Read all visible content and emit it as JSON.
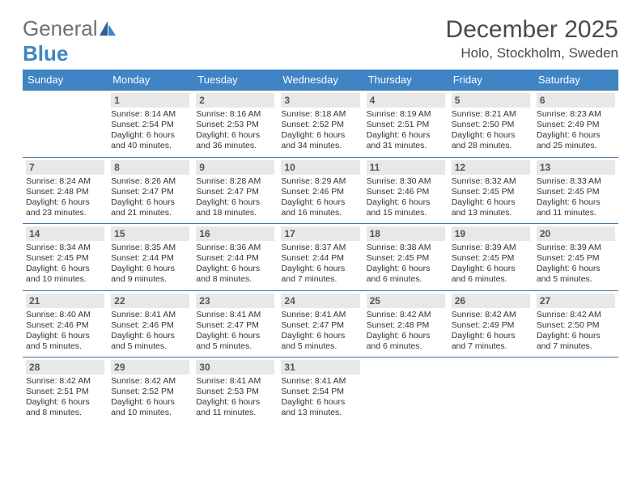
{
  "logo": {
    "part1": "General",
    "part2": "Blue"
  },
  "title": "December 2025",
  "location": "Holo, Stockholm, Sweden",
  "colors": {
    "header_bg": "#3f84c5",
    "header_text": "#ffffff",
    "daynum_bg": "#e8e8e8",
    "border": "#3f6ea0",
    "body_text": "#333333",
    "logo_gray": "#707070",
    "logo_blue": "#3f84c5"
  },
  "day_headers": [
    "Sunday",
    "Monday",
    "Tuesday",
    "Wednesday",
    "Thursday",
    "Friday",
    "Saturday"
  ],
  "weeks": [
    [
      {
        "num": "",
        "sunrise": "",
        "sunset": "",
        "daylight": ""
      },
      {
        "num": "1",
        "sunrise": "Sunrise: 8:14 AM",
        "sunset": "Sunset: 2:54 PM",
        "daylight": "Daylight: 6 hours and 40 minutes."
      },
      {
        "num": "2",
        "sunrise": "Sunrise: 8:16 AM",
        "sunset": "Sunset: 2:53 PM",
        "daylight": "Daylight: 6 hours and 36 minutes."
      },
      {
        "num": "3",
        "sunrise": "Sunrise: 8:18 AM",
        "sunset": "Sunset: 2:52 PM",
        "daylight": "Daylight: 6 hours and 34 minutes."
      },
      {
        "num": "4",
        "sunrise": "Sunrise: 8:19 AM",
        "sunset": "Sunset: 2:51 PM",
        "daylight": "Daylight: 6 hours and 31 minutes."
      },
      {
        "num": "5",
        "sunrise": "Sunrise: 8:21 AM",
        "sunset": "Sunset: 2:50 PM",
        "daylight": "Daylight: 6 hours and 28 minutes."
      },
      {
        "num": "6",
        "sunrise": "Sunrise: 8:23 AM",
        "sunset": "Sunset: 2:49 PM",
        "daylight": "Daylight: 6 hours and 25 minutes."
      }
    ],
    [
      {
        "num": "7",
        "sunrise": "Sunrise: 8:24 AM",
        "sunset": "Sunset: 2:48 PM",
        "daylight": "Daylight: 6 hours and 23 minutes."
      },
      {
        "num": "8",
        "sunrise": "Sunrise: 8:26 AM",
        "sunset": "Sunset: 2:47 PM",
        "daylight": "Daylight: 6 hours and 21 minutes."
      },
      {
        "num": "9",
        "sunrise": "Sunrise: 8:28 AM",
        "sunset": "Sunset: 2:47 PM",
        "daylight": "Daylight: 6 hours and 18 minutes."
      },
      {
        "num": "10",
        "sunrise": "Sunrise: 8:29 AM",
        "sunset": "Sunset: 2:46 PM",
        "daylight": "Daylight: 6 hours and 16 minutes."
      },
      {
        "num": "11",
        "sunrise": "Sunrise: 8:30 AM",
        "sunset": "Sunset: 2:46 PM",
        "daylight": "Daylight: 6 hours and 15 minutes."
      },
      {
        "num": "12",
        "sunrise": "Sunrise: 8:32 AM",
        "sunset": "Sunset: 2:45 PM",
        "daylight": "Daylight: 6 hours and 13 minutes."
      },
      {
        "num": "13",
        "sunrise": "Sunrise: 8:33 AM",
        "sunset": "Sunset: 2:45 PM",
        "daylight": "Daylight: 6 hours and 11 minutes."
      }
    ],
    [
      {
        "num": "14",
        "sunrise": "Sunrise: 8:34 AM",
        "sunset": "Sunset: 2:45 PM",
        "daylight": "Daylight: 6 hours and 10 minutes."
      },
      {
        "num": "15",
        "sunrise": "Sunrise: 8:35 AM",
        "sunset": "Sunset: 2:44 PM",
        "daylight": "Daylight: 6 hours and 9 minutes."
      },
      {
        "num": "16",
        "sunrise": "Sunrise: 8:36 AM",
        "sunset": "Sunset: 2:44 PM",
        "daylight": "Daylight: 6 hours and 8 minutes."
      },
      {
        "num": "17",
        "sunrise": "Sunrise: 8:37 AM",
        "sunset": "Sunset: 2:44 PM",
        "daylight": "Daylight: 6 hours and 7 minutes."
      },
      {
        "num": "18",
        "sunrise": "Sunrise: 8:38 AM",
        "sunset": "Sunset: 2:45 PM",
        "daylight": "Daylight: 6 hours and 6 minutes."
      },
      {
        "num": "19",
        "sunrise": "Sunrise: 8:39 AM",
        "sunset": "Sunset: 2:45 PM",
        "daylight": "Daylight: 6 hours and 6 minutes."
      },
      {
        "num": "20",
        "sunrise": "Sunrise: 8:39 AM",
        "sunset": "Sunset: 2:45 PM",
        "daylight": "Daylight: 6 hours and 5 minutes."
      }
    ],
    [
      {
        "num": "21",
        "sunrise": "Sunrise: 8:40 AM",
        "sunset": "Sunset: 2:46 PM",
        "daylight": "Daylight: 6 hours and 5 minutes."
      },
      {
        "num": "22",
        "sunrise": "Sunrise: 8:41 AM",
        "sunset": "Sunset: 2:46 PM",
        "daylight": "Daylight: 6 hours and 5 minutes."
      },
      {
        "num": "23",
        "sunrise": "Sunrise: 8:41 AM",
        "sunset": "Sunset: 2:47 PM",
        "daylight": "Daylight: 6 hours and 5 minutes."
      },
      {
        "num": "24",
        "sunrise": "Sunrise: 8:41 AM",
        "sunset": "Sunset: 2:47 PM",
        "daylight": "Daylight: 6 hours and 5 minutes."
      },
      {
        "num": "25",
        "sunrise": "Sunrise: 8:42 AM",
        "sunset": "Sunset: 2:48 PM",
        "daylight": "Daylight: 6 hours and 6 minutes."
      },
      {
        "num": "26",
        "sunrise": "Sunrise: 8:42 AM",
        "sunset": "Sunset: 2:49 PM",
        "daylight": "Daylight: 6 hours and 7 minutes."
      },
      {
        "num": "27",
        "sunrise": "Sunrise: 8:42 AM",
        "sunset": "Sunset: 2:50 PM",
        "daylight": "Daylight: 6 hours and 7 minutes."
      }
    ],
    [
      {
        "num": "28",
        "sunrise": "Sunrise: 8:42 AM",
        "sunset": "Sunset: 2:51 PM",
        "daylight": "Daylight: 6 hours and 8 minutes."
      },
      {
        "num": "29",
        "sunrise": "Sunrise: 8:42 AM",
        "sunset": "Sunset: 2:52 PM",
        "daylight": "Daylight: 6 hours and 10 minutes."
      },
      {
        "num": "30",
        "sunrise": "Sunrise: 8:41 AM",
        "sunset": "Sunset: 2:53 PM",
        "daylight": "Daylight: 6 hours and 11 minutes."
      },
      {
        "num": "31",
        "sunrise": "Sunrise: 8:41 AM",
        "sunset": "Sunset: 2:54 PM",
        "daylight": "Daylight: 6 hours and 13 minutes."
      },
      {
        "num": "",
        "sunrise": "",
        "sunset": "",
        "daylight": ""
      },
      {
        "num": "",
        "sunrise": "",
        "sunset": "",
        "daylight": ""
      },
      {
        "num": "",
        "sunrise": "",
        "sunset": "",
        "daylight": ""
      }
    ]
  ]
}
